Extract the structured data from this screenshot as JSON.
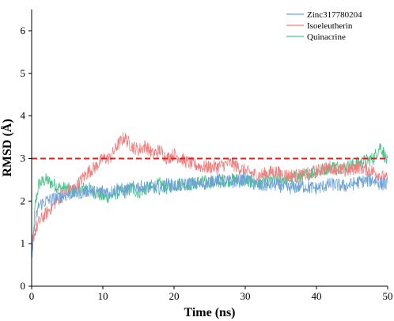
{
  "chart_data": {
    "type": "line",
    "title": "",
    "xlabel": "Time (ns)",
    "ylabel": "RMSD (Å)",
    "xlim": [
      0,
      50
    ],
    "ylim": [
      0,
      6.5
    ],
    "xticks": [
      0,
      10,
      20,
      30,
      40,
      50
    ],
    "yticks": [
      0,
      1,
      2,
      3,
      4,
      5,
      6
    ],
    "grid": false,
    "legend_position": "top-right",
    "threshold": {
      "y": 3.0,
      "color": "#e02020",
      "style": "dashed"
    },
    "series": [
      {
        "name": "Zinc317780204",
        "color": "#6fa3d8",
        "x": [
          0,
          0.5,
          1,
          2,
          3,
          4,
          5,
          6,
          7,
          8,
          9,
          10,
          11,
          12,
          13,
          14,
          15,
          16,
          17,
          18,
          19,
          20,
          22,
          24,
          26,
          28,
          30,
          32,
          34,
          36,
          38,
          40,
          42,
          44,
          46,
          48,
          49,
          50
        ],
        "y": [
          0.8,
          1.5,
          1.9,
          2.0,
          2.05,
          2.1,
          2.15,
          2.2,
          2.2,
          2.25,
          2.2,
          2.25,
          2.2,
          2.3,
          2.25,
          2.3,
          2.35,
          2.3,
          2.35,
          2.3,
          2.4,
          2.35,
          2.4,
          2.4,
          2.5,
          2.45,
          2.5,
          2.35,
          2.4,
          2.3,
          2.35,
          2.3,
          2.4,
          2.35,
          2.45,
          2.5,
          2.4,
          2.4
        ]
      },
      {
        "name": "Isoeleutherin",
        "color": "#f08080",
        "x": [
          0,
          0.5,
          1,
          2,
          3,
          4,
          5,
          6,
          7,
          8,
          9,
          10,
          11,
          12,
          13,
          14,
          15,
          16,
          17,
          18,
          19,
          20,
          22,
          24,
          26,
          28,
          30,
          32,
          34,
          36,
          38,
          40,
          42,
          44,
          46,
          48,
          49,
          50
        ],
        "y": [
          1.0,
          1.3,
          1.5,
          1.7,
          1.9,
          2.1,
          2.2,
          2.3,
          2.5,
          2.7,
          2.8,
          3.0,
          3.0,
          3.3,
          3.5,
          3.3,
          3.2,
          3.3,
          3.1,
          3.2,
          3.0,
          3.1,
          2.9,
          2.8,
          2.8,
          2.9,
          2.7,
          2.6,
          2.7,
          2.6,
          2.6,
          2.7,
          2.8,
          2.7,
          2.8,
          2.7,
          2.6,
          2.5
        ]
      },
      {
        "name": "Quinacrine",
        "color": "#4cc28a",
        "x": [
          0,
          0.5,
          1,
          2,
          3,
          4,
          5,
          6,
          7,
          8,
          9,
          10,
          11,
          12,
          13,
          14,
          15,
          16,
          17,
          18,
          19,
          20,
          22,
          24,
          26,
          28,
          30,
          32,
          34,
          36,
          38,
          40,
          42,
          44,
          46,
          48,
          49,
          50
        ],
        "y": [
          0.6,
          1.9,
          2.4,
          2.5,
          2.4,
          2.3,
          2.3,
          2.2,
          2.3,
          2.3,
          2.2,
          2.1,
          2.1,
          2.2,
          2.2,
          2.3,
          2.2,
          2.3,
          2.3,
          2.4,
          2.3,
          2.4,
          2.4,
          2.45,
          2.45,
          2.5,
          2.5,
          2.4,
          2.5,
          2.5,
          2.6,
          2.7,
          2.8,
          2.8,
          2.9,
          3.0,
          3.3,
          2.9
        ]
      }
    ]
  }
}
